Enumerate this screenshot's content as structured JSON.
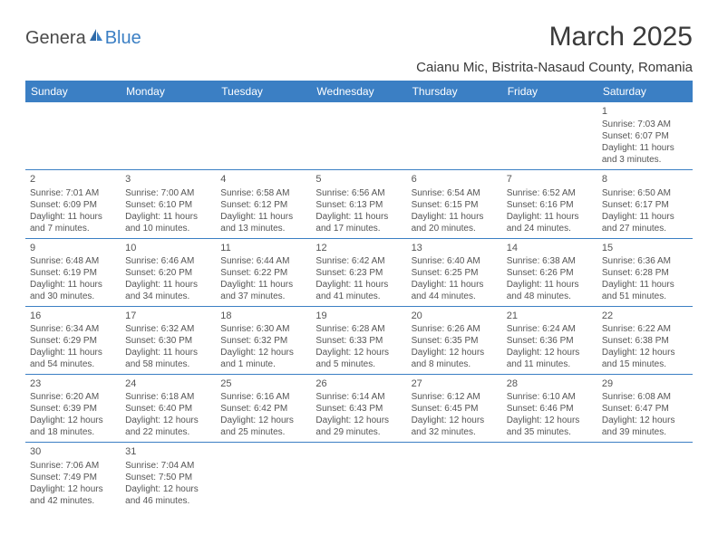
{
  "logo": {
    "part1": "Genera",
    "part2": "Blue"
  },
  "title": "March 2025",
  "location": "Caianu Mic, Bistrita-Nasaud County, Romania",
  "weekdays": [
    "Sunday",
    "Monday",
    "Tuesday",
    "Wednesday",
    "Thursday",
    "Friday",
    "Saturday"
  ],
  "colors": {
    "header_bg": "#3b7fc4",
    "header_text": "#ffffff",
    "body_text": "#555555",
    "rule": "#3b7fc4"
  },
  "weeks": [
    [
      null,
      null,
      null,
      null,
      null,
      null,
      {
        "n": "1",
        "sunrise": "Sunrise: 7:03 AM",
        "sunset": "Sunset: 6:07 PM",
        "day1": "Daylight: 11 hours",
        "day2": "and 3 minutes."
      }
    ],
    [
      {
        "n": "2",
        "sunrise": "Sunrise: 7:01 AM",
        "sunset": "Sunset: 6:09 PM",
        "day1": "Daylight: 11 hours",
        "day2": "and 7 minutes."
      },
      {
        "n": "3",
        "sunrise": "Sunrise: 7:00 AM",
        "sunset": "Sunset: 6:10 PM",
        "day1": "Daylight: 11 hours",
        "day2": "and 10 minutes."
      },
      {
        "n": "4",
        "sunrise": "Sunrise: 6:58 AM",
        "sunset": "Sunset: 6:12 PM",
        "day1": "Daylight: 11 hours",
        "day2": "and 13 minutes."
      },
      {
        "n": "5",
        "sunrise": "Sunrise: 6:56 AM",
        "sunset": "Sunset: 6:13 PM",
        "day1": "Daylight: 11 hours",
        "day2": "and 17 minutes."
      },
      {
        "n": "6",
        "sunrise": "Sunrise: 6:54 AM",
        "sunset": "Sunset: 6:15 PM",
        "day1": "Daylight: 11 hours",
        "day2": "and 20 minutes."
      },
      {
        "n": "7",
        "sunrise": "Sunrise: 6:52 AM",
        "sunset": "Sunset: 6:16 PM",
        "day1": "Daylight: 11 hours",
        "day2": "and 24 minutes."
      },
      {
        "n": "8",
        "sunrise": "Sunrise: 6:50 AM",
        "sunset": "Sunset: 6:17 PM",
        "day1": "Daylight: 11 hours",
        "day2": "and 27 minutes."
      }
    ],
    [
      {
        "n": "9",
        "sunrise": "Sunrise: 6:48 AM",
        "sunset": "Sunset: 6:19 PM",
        "day1": "Daylight: 11 hours",
        "day2": "and 30 minutes."
      },
      {
        "n": "10",
        "sunrise": "Sunrise: 6:46 AM",
        "sunset": "Sunset: 6:20 PM",
        "day1": "Daylight: 11 hours",
        "day2": "and 34 minutes."
      },
      {
        "n": "11",
        "sunrise": "Sunrise: 6:44 AM",
        "sunset": "Sunset: 6:22 PM",
        "day1": "Daylight: 11 hours",
        "day2": "and 37 minutes."
      },
      {
        "n": "12",
        "sunrise": "Sunrise: 6:42 AM",
        "sunset": "Sunset: 6:23 PM",
        "day1": "Daylight: 11 hours",
        "day2": "and 41 minutes."
      },
      {
        "n": "13",
        "sunrise": "Sunrise: 6:40 AM",
        "sunset": "Sunset: 6:25 PM",
        "day1": "Daylight: 11 hours",
        "day2": "and 44 minutes."
      },
      {
        "n": "14",
        "sunrise": "Sunrise: 6:38 AM",
        "sunset": "Sunset: 6:26 PM",
        "day1": "Daylight: 11 hours",
        "day2": "and 48 minutes."
      },
      {
        "n": "15",
        "sunrise": "Sunrise: 6:36 AM",
        "sunset": "Sunset: 6:28 PM",
        "day1": "Daylight: 11 hours",
        "day2": "and 51 minutes."
      }
    ],
    [
      {
        "n": "16",
        "sunrise": "Sunrise: 6:34 AM",
        "sunset": "Sunset: 6:29 PM",
        "day1": "Daylight: 11 hours",
        "day2": "and 54 minutes."
      },
      {
        "n": "17",
        "sunrise": "Sunrise: 6:32 AM",
        "sunset": "Sunset: 6:30 PM",
        "day1": "Daylight: 11 hours",
        "day2": "and 58 minutes."
      },
      {
        "n": "18",
        "sunrise": "Sunrise: 6:30 AM",
        "sunset": "Sunset: 6:32 PM",
        "day1": "Daylight: 12 hours",
        "day2": "and 1 minute."
      },
      {
        "n": "19",
        "sunrise": "Sunrise: 6:28 AM",
        "sunset": "Sunset: 6:33 PM",
        "day1": "Daylight: 12 hours",
        "day2": "and 5 minutes."
      },
      {
        "n": "20",
        "sunrise": "Sunrise: 6:26 AM",
        "sunset": "Sunset: 6:35 PM",
        "day1": "Daylight: 12 hours",
        "day2": "and 8 minutes."
      },
      {
        "n": "21",
        "sunrise": "Sunrise: 6:24 AM",
        "sunset": "Sunset: 6:36 PM",
        "day1": "Daylight: 12 hours",
        "day2": "and 11 minutes."
      },
      {
        "n": "22",
        "sunrise": "Sunrise: 6:22 AM",
        "sunset": "Sunset: 6:38 PM",
        "day1": "Daylight: 12 hours",
        "day2": "and 15 minutes."
      }
    ],
    [
      {
        "n": "23",
        "sunrise": "Sunrise: 6:20 AM",
        "sunset": "Sunset: 6:39 PM",
        "day1": "Daylight: 12 hours",
        "day2": "and 18 minutes."
      },
      {
        "n": "24",
        "sunrise": "Sunrise: 6:18 AM",
        "sunset": "Sunset: 6:40 PM",
        "day1": "Daylight: 12 hours",
        "day2": "and 22 minutes."
      },
      {
        "n": "25",
        "sunrise": "Sunrise: 6:16 AM",
        "sunset": "Sunset: 6:42 PM",
        "day1": "Daylight: 12 hours",
        "day2": "and 25 minutes."
      },
      {
        "n": "26",
        "sunrise": "Sunrise: 6:14 AM",
        "sunset": "Sunset: 6:43 PM",
        "day1": "Daylight: 12 hours",
        "day2": "and 29 minutes."
      },
      {
        "n": "27",
        "sunrise": "Sunrise: 6:12 AM",
        "sunset": "Sunset: 6:45 PM",
        "day1": "Daylight: 12 hours",
        "day2": "and 32 minutes."
      },
      {
        "n": "28",
        "sunrise": "Sunrise: 6:10 AM",
        "sunset": "Sunset: 6:46 PM",
        "day1": "Daylight: 12 hours",
        "day2": "and 35 minutes."
      },
      {
        "n": "29",
        "sunrise": "Sunrise: 6:08 AM",
        "sunset": "Sunset: 6:47 PM",
        "day1": "Daylight: 12 hours",
        "day2": "and 39 minutes."
      }
    ],
    [
      {
        "n": "30",
        "sunrise": "Sunrise: 7:06 AM",
        "sunset": "Sunset: 7:49 PM",
        "day1": "Daylight: 12 hours",
        "day2": "and 42 minutes."
      },
      {
        "n": "31",
        "sunrise": "Sunrise: 7:04 AM",
        "sunset": "Sunset: 7:50 PM",
        "day1": "Daylight: 12 hours",
        "day2": "and 46 minutes."
      },
      null,
      null,
      null,
      null,
      null
    ]
  ]
}
